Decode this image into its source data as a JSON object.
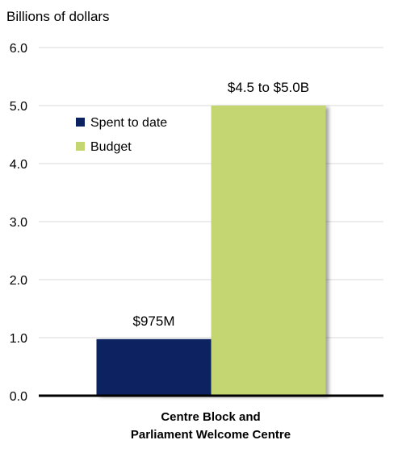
{
  "chart_data": {
    "type": "bar",
    "ylabel": "Billions of dollars",
    "ylim": [
      0,
      6
    ],
    "yticks": [
      "0.0",
      "1.0",
      "2.0",
      "3.0",
      "4.0",
      "5.0",
      "6.0"
    ],
    "grid": true,
    "legend_position": "upper-left",
    "categories": [
      "Centre Block and Parliament Welcome Centre"
    ],
    "category_label_lines": [
      "Centre Block and",
      "Parliament Welcome Centre"
    ],
    "series": [
      {
        "name": "Spent to date",
        "values": [
          0.975
        ],
        "data_label": "$975M",
        "color": "#0b2160"
      },
      {
        "name": "Budget",
        "values": [
          5.0
        ],
        "data_label": "$4.5 to $5.0B",
        "color": "#c3d672"
      }
    ]
  }
}
